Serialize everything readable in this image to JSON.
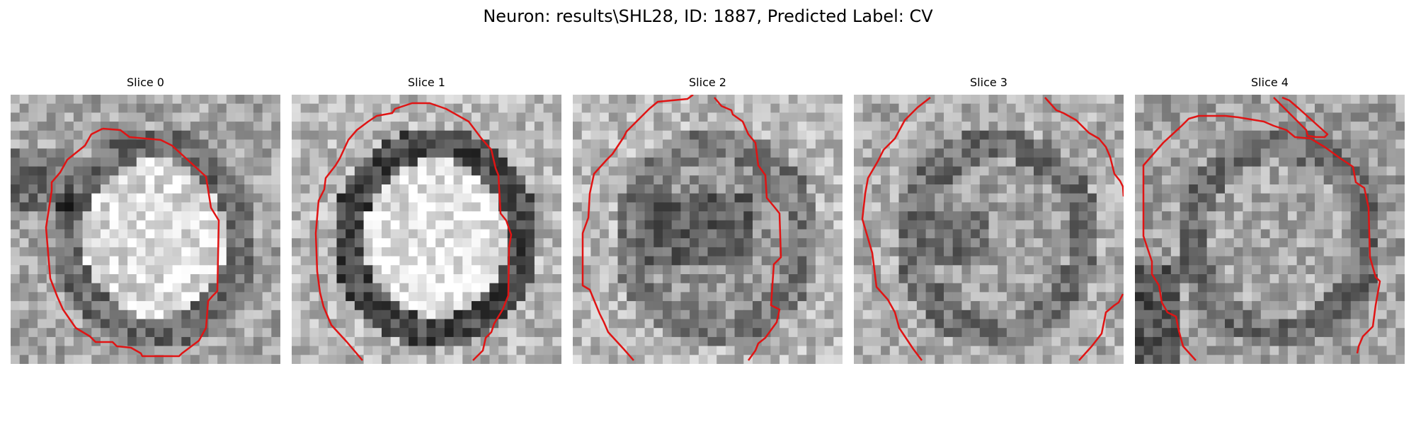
{
  "figure": {
    "title": "Neuron: results\\SHL28, ID: 1887, Predicted Label: CV"
  },
  "panels": [
    {
      "label": "Slice 0",
      "center_brightness": 0.86,
      "ring_brightness": 0.42,
      "outer_brightness": 0.65
    },
    {
      "label": "Slice 1",
      "center_brightness": 0.9,
      "ring_brightness": 0.28,
      "outer_brightness": 0.72
    },
    {
      "label": "Slice 2",
      "center_brightness": 0.58,
      "ring_brightness": 0.48,
      "outer_brightness": 0.72
    },
    {
      "label": "Slice 3",
      "center_brightness": 0.63,
      "ring_brightness": 0.44,
      "outer_brightness": 0.68
    },
    {
      "label": "Slice 4",
      "center_brightness": 0.66,
      "ring_brightness": 0.43,
      "outer_brightness": 0.63
    }
  ],
  "colors": {
    "contour": "#e01414",
    "background": "#ffffff"
  }
}
